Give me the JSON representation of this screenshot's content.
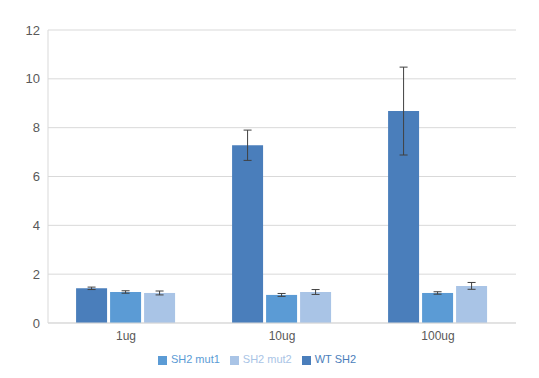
{
  "chart_data": {
    "type": "bar",
    "categories": [
      "1ug",
      "10ug",
      "100ug"
    ],
    "series": [
      {
        "name": "WT SH2",
        "color": "#4a7ebb",
        "values": [
          1.42,
          7.28,
          8.68
        ],
        "error": [
          0.05,
          0.62,
          1.8
        ]
      },
      {
        "name": "SH2 mut1",
        "color": "#5b9bd5",
        "values": [
          1.27,
          1.15,
          1.23
        ],
        "error": [
          0.05,
          0.06,
          0.05
        ]
      },
      {
        "name": "SH2 mut2",
        "color": "#a9c4e6",
        "values": [
          1.23,
          1.27,
          1.52
        ],
        "error": [
          0.08,
          0.1,
          0.14
        ]
      }
    ],
    "ylim": [
      0,
      12
    ],
    "yticks": [
      0,
      2,
      4,
      6,
      8,
      10,
      12
    ],
    "grid": true,
    "legend": "bottom"
  }
}
